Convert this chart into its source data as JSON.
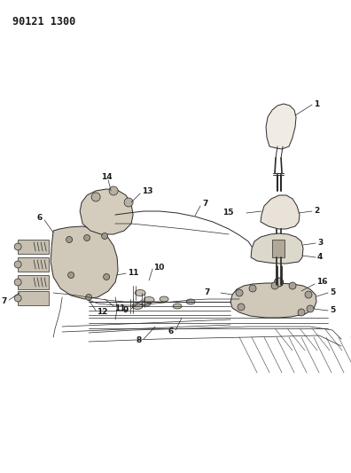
{
  "title_code": "90121 1300",
  "bg_color": "#ffffff",
  "lc": "#2a2a2a",
  "label_color": "#1a1a1a",
  "fig_width": 3.96,
  "fig_height": 5.33,
  "dpi": 100,
  "title_fontsize": 8.5,
  "label_fontsize": 6.5
}
